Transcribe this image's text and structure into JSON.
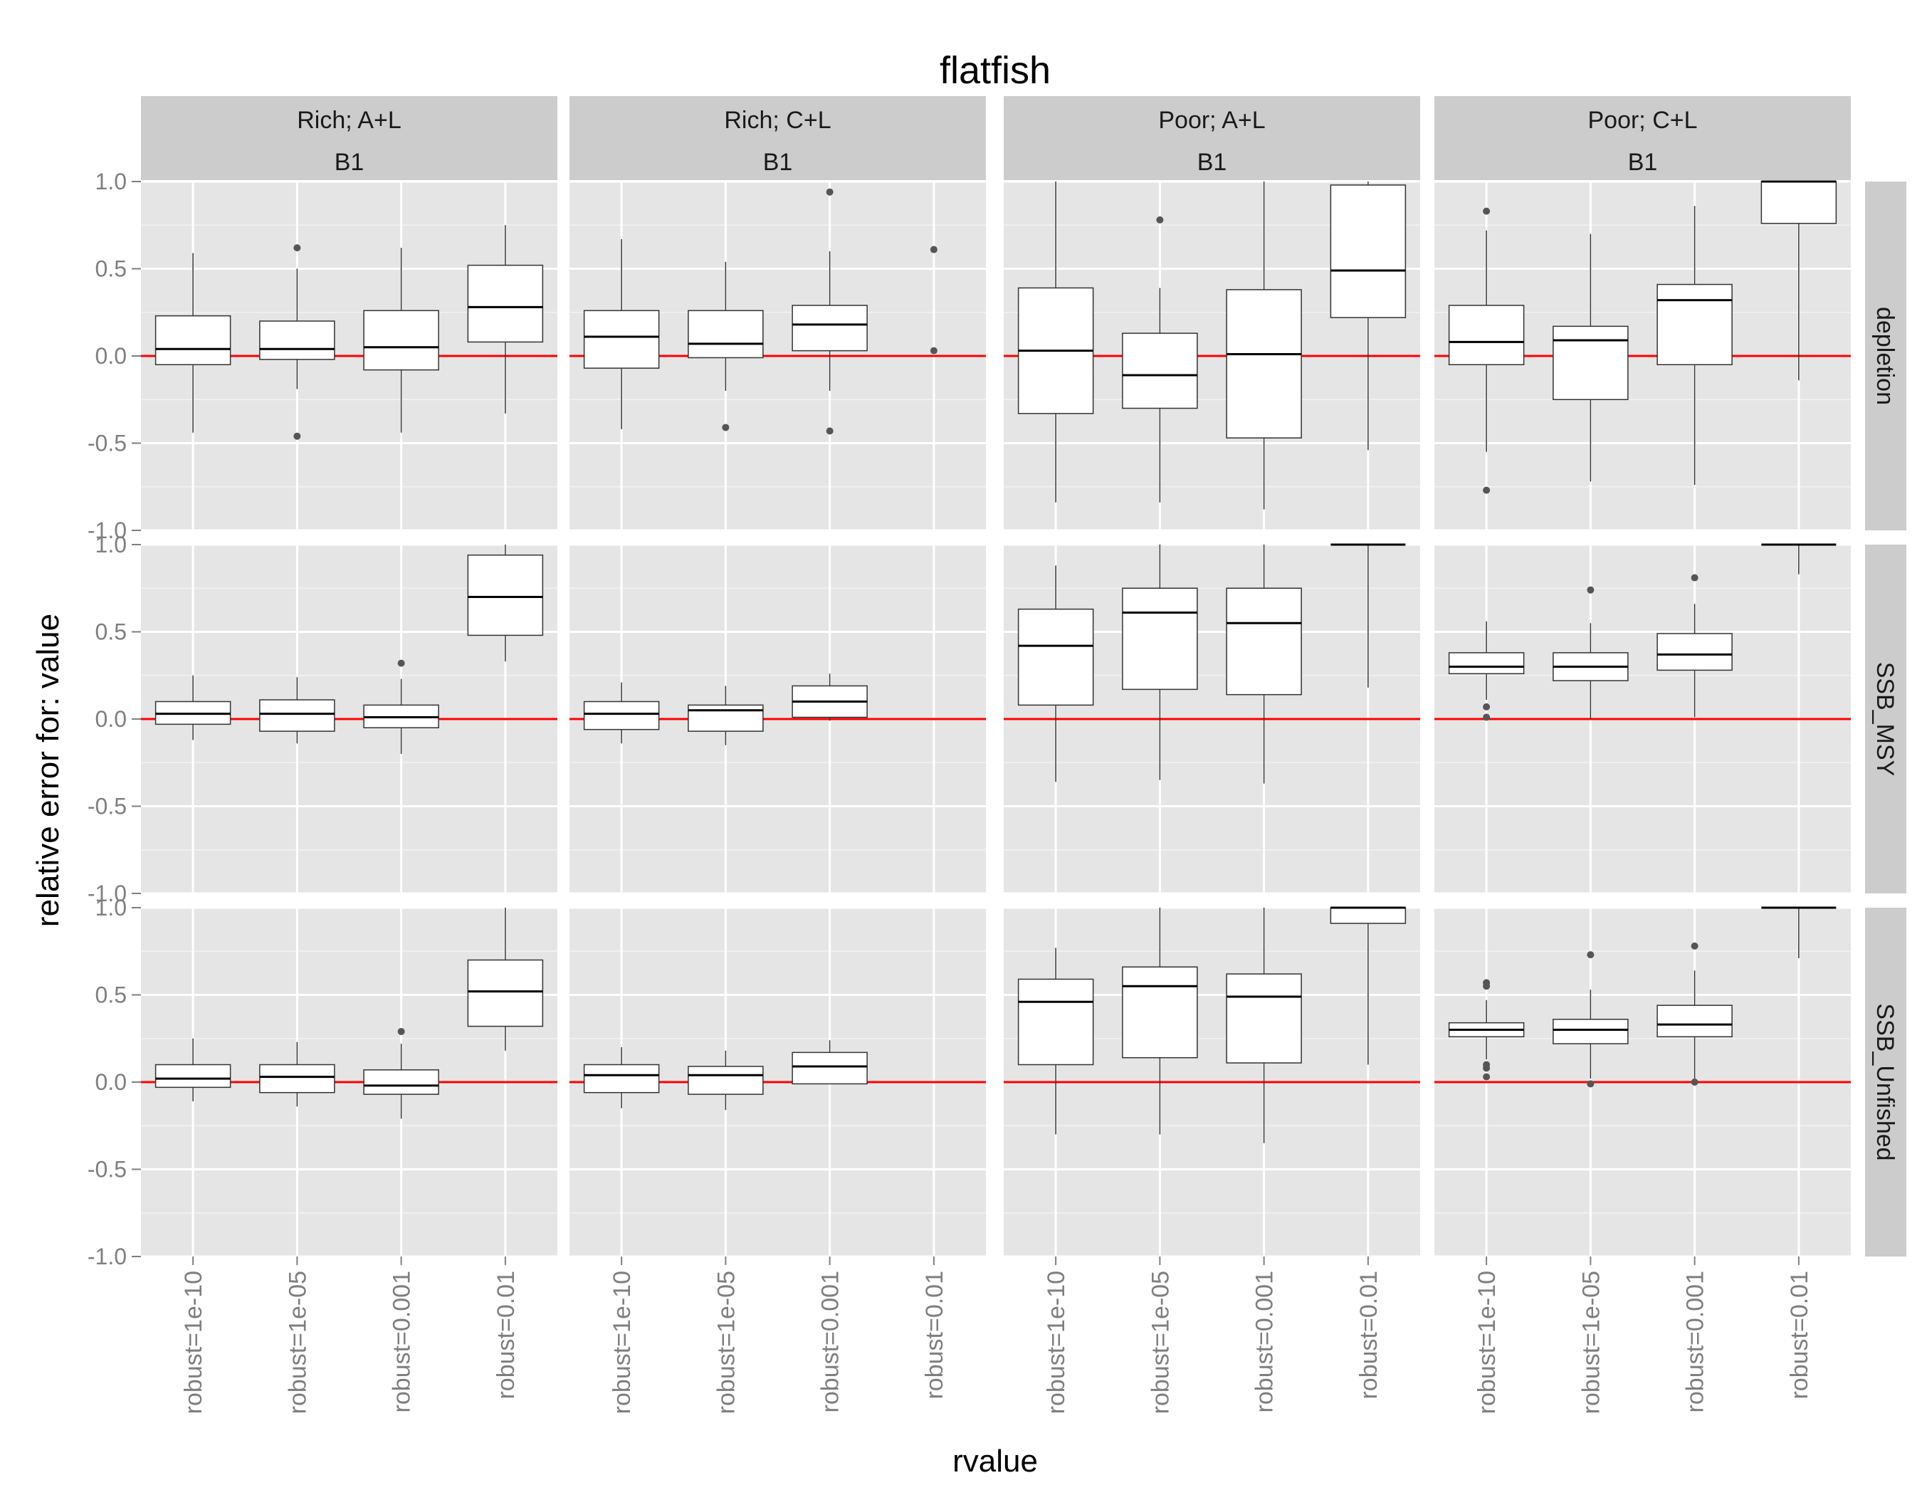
{
  "chart_data": {
    "type": "boxplot",
    "title": "flatfish",
    "xlabel": "rvalue",
    "ylabel": "relative error for: value",
    "ylim": [
      -1.0,
      1.0
    ],
    "y_ticks": [
      "-1.0",
      "-0.5",
      "0.0",
      "0.5",
      "1.0"
    ],
    "grid": true,
    "reference_line": {
      "y": 0,
      "color": "#ff0000"
    },
    "categories": [
      "robust=1e-10",
      "robust=1e-05",
      "robust=0.001",
      "robust=0.01"
    ],
    "column_facets": [
      {
        "line1": "Rich; A+L",
        "line2": "B1"
      },
      {
        "line1": "Rich; C+L",
        "line2": "B1"
      },
      {
        "line1": "Poor; A+L",
        "line2": "B1"
      },
      {
        "line1": "Poor; C+L",
        "line2": "B1"
      }
    ],
    "row_facets": [
      "depletion",
      "SSB_MSY",
      "SSB_Unfished"
    ],
    "panels": [
      [
        [
          {
            "q1": -0.05,
            "median": 0.04,
            "q3": 0.23,
            "lo": -0.44,
            "hi": 0.59,
            "outliers": []
          },
          {
            "q1": -0.02,
            "median": 0.04,
            "q3": 0.2,
            "lo": -0.19,
            "hi": 0.5,
            "outliers": [
              0.62,
              -0.46
            ]
          },
          {
            "q1": -0.08,
            "median": 0.05,
            "q3": 0.26,
            "lo": -0.44,
            "hi": 0.62,
            "outliers": []
          },
          {
            "q1": 0.08,
            "median": 0.28,
            "q3": 0.52,
            "lo": -0.33,
            "hi": 0.75,
            "outliers": []
          }
        ],
        [
          {
            "q1": -0.07,
            "median": 0.11,
            "q3": 0.26,
            "lo": -0.42,
            "hi": 0.67,
            "outliers": []
          },
          {
            "q1": -0.01,
            "median": 0.07,
            "q3": 0.26,
            "lo": -0.2,
            "hi": 0.54,
            "outliers": [
              -0.41
            ]
          },
          {
            "q1": 0.03,
            "median": 0.18,
            "q3": 0.29,
            "lo": -0.2,
            "hi": 0.6,
            "outliers": [
              0.94,
              -0.43
            ]
          },
          {
            "q1": null,
            "median": null,
            "q3": null,
            "lo": null,
            "hi": null,
            "outliers": [
              0.61,
              0.03
            ]
          }
        ],
        [
          {
            "q1": -0.33,
            "median": 0.03,
            "q3": 0.39,
            "lo": -0.84,
            "hi": 1.0,
            "outliers": []
          },
          {
            "q1": -0.3,
            "median": -0.11,
            "q3": 0.13,
            "lo": -0.84,
            "hi": 0.39,
            "outliers": [
              0.78
            ]
          },
          {
            "q1": -0.47,
            "median": 0.01,
            "q3": 0.38,
            "lo": -0.88,
            "hi": 1.0,
            "outliers": []
          },
          {
            "q1": 0.22,
            "median": 0.49,
            "q3": 0.98,
            "lo": -0.54,
            "hi": 1.0,
            "outliers": []
          }
        ],
        [
          {
            "q1": -0.05,
            "median": 0.08,
            "q3": 0.29,
            "lo": -0.55,
            "hi": 0.72,
            "outliers": [
              0.83,
              -0.77
            ]
          },
          {
            "q1": -0.25,
            "median": 0.09,
            "q3": 0.17,
            "lo": -0.72,
            "hi": 0.7,
            "outliers": []
          },
          {
            "q1": -0.05,
            "median": 0.32,
            "q3": 0.41,
            "lo": -0.74,
            "hi": 0.86,
            "outliers": []
          },
          {
            "q1": 0.76,
            "median": 1.0,
            "q3": 1.0,
            "lo": -0.14,
            "hi": 1.0,
            "outliers": []
          }
        ]
      ],
      [
        [
          {
            "q1": -0.03,
            "median": 0.03,
            "q3": 0.1,
            "lo": -0.12,
            "hi": 0.25,
            "outliers": []
          },
          {
            "q1": -0.07,
            "median": 0.03,
            "q3": 0.11,
            "lo": -0.14,
            "hi": 0.24,
            "outliers": []
          },
          {
            "q1": -0.05,
            "median": 0.01,
            "q3": 0.08,
            "lo": -0.2,
            "hi": 0.23,
            "outliers": [
              0.32
            ]
          },
          {
            "q1": 0.48,
            "median": 0.7,
            "q3": 0.94,
            "lo": 0.33,
            "hi": 1.0,
            "outliers": []
          }
        ],
        [
          {
            "q1": -0.06,
            "median": 0.03,
            "q3": 0.1,
            "lo": -0.14,
            "hi": 0.21,
            "outliers": []
          },
          {
            "q1": -0.07,
            "median": 0.05,
            "q3": 0.08,
            "lo": -0.15,
            "hi": 0.19,
            "outliers": []
          },
          {
            "q1": 0.01,
            "median": 0.1,
            "q3": 0.19,
            "lo": -0.01,
            "hi": 0.26,
            "outliers": []
          },
          {
            "q1": null,
            "median": null,
            "q3": null,
            "lo": null,
            "hi": null,
            "outliers": []
          }
        ],
        [
          {
            "q1": 0.08,
            "median": 0.42,
            "q3": 0.63,
            "lo": -0.36,
            "hi": 0.88,
            "outliers": []
          },
          {
            "q1": 0.17,
            "median": 0.61,
            "q3": 0.75,
            "lo": -0.35,
            "hi": 1.0,
            "outliers": []
          },
          {
            "q1": 0.14,
            "median": 0.55,
            "q3": 0.75,
            "lo": -0.37,
            "hi": 1.0,
            "outliers": []
          },
          {
            "q1": 1.0,
            "median": 1.0,
            "q3": 1.0,
            "lo": 0.18,
            "hi": 1.0,
            "outliers": []
          }
        ],
        [
          {
            "q1": 0.26,
            "median": 0.3,
            "q3": 0.38,
            "lo": 0.11,
            "hi": 0.56,
            "outliers": [
              0.07,
              0.01
            ]
          },
          {
            "q1": 0.22,
            "median": 0.3,
            "q3": 0.38,
            "lo": 0.0,
            "hi": 0.55,
            "outliers": [
              0.74
            ]
          },
          {
            "q1": 0.28,
            "median": 0.37,
            "q3": 0.49,
            "lo": 0.01,
            "hi": 0.66,
            "outliers": [
              0.81
            ]
          },
          {
            "q1": 1.0,
            "median": 1.0,
            "q3": 1.0,
            "lo": 0.83,
            "hi": 1.0,
            "outliers": []
          }
        ]
      ],
      [
        [
          {
            "q1": -0.03,
            "median": 0.02,
            "q3": 0.1,
            "lo": -0.11,
            "hi": 0.25,
            "outliers": []
          },
          {
            "q1": -0.06,
            "median": 0.03,
            "q3": 0.1,
            "lo": -0.14,
            "hi": 0.23,
            "outliers": []
          },
          {
            "q1": -0.07,
            "median": -0.02,
            "q3": 0.07,
            "lo": -0.21,
            "hi": 0.22,
            "outliers": [
              0.29
            ]
          },
          {
            "q1": 0.32,
            "median": 0.52,
            "q3": 0.7,
            "lo": 0.18,
            "hi": 1.0,
            "outliers": []
          }
        ],
        [
          {
            "q1": -0.06,
            "median": 0.04,
            "q3": 0.1,
            "lo": -0.15,
            "hi": 0.2,
            "outliers": []
          },
          {
            "q1": -0.07,
            "median": 0.04,
            "q3": 0.09,
            "lo": -0.16,
            "hi": 0.18,
            "outliers": []
          },
          {
            "q1": -0.01,
            "median": 0.09,
            "q3": 0.17,
            "lo": -0.01,
            "hi": 0.24,
            "outliers": []
          },
          {
            "q1": null,
            "median": null,
            "q3": null,
            "lo": null,
            "hi": null,
            "outliers": []
          }
        ],
        [
          {
            "q1": 0.1,
            "median": 0.46,
            "q3": 0.59,
            "lo": -0.3,
            "hi": 0.77,
            "outliers": []
          },
          {
            "q1": 0.14,
            "median": 0.55,
            "q3": 0.66,
            "lo": -0.3,
            "hi": 1.0,
            "outliers": []
          },
          {
            "q1": 0.11,
            "median": 0.49,
            "q3": 0.62,
            "lo": -0.35,
            "hi": 1.0,
            "outliers": []
          },
          {
            "q1": 0.91,
            "median": 1.0,
            "q3": 1.0,
            "lo": 0.1,
            "hi": 1.0,
            "outliers": []
          }
        ],
        [
          {
            "q1": 0.26,
            "median": 0.3,
            "q3": 0.34,
            "lo": 0.13,
            "hi": 0.47,
            "outliers": [
              0.57,
              0.55,
              0.1,
              0.08,
              0.03
            ]
          },
          {
            "q1": 0.22,
            "median": 0.3,
            "q3": 0.36,
            "lo": 0.02,
            "hi": 0.53,
            "outliers": [
              0.73,
              -0.01
            ]
          },
          {
            "q1": 0.26,
            "median": 0.33,
            "q3": 0.44,
            "lo": 0.02,
            "hi": 0.64,
            "outliers": [
              0.78,
              0.0
            ]
          },
          {
            "q1": 1.0,
            "median": 1.0,
            "q3": 1.0,
            "lo": 0.71,
            "hi": 1.0,
            "outliers": []
          }
        ]
      ]
    ]
  }
}
